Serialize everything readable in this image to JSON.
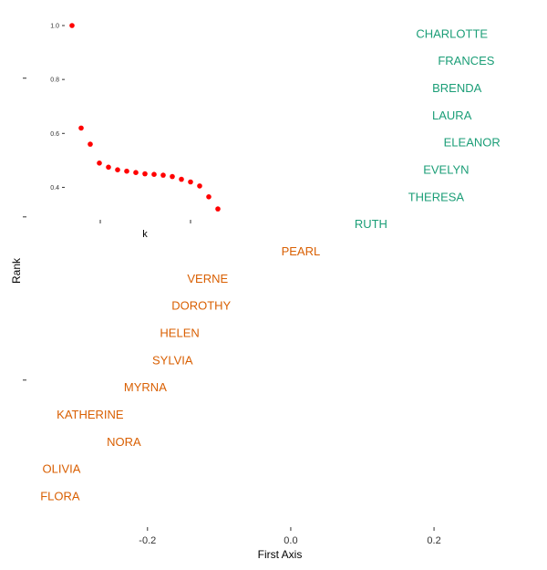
{
  "chart_data": [
    {
      "type": "scatter",
      "title": "",
      "xlabel": "First Axis",
      "ylabel": "Rank",
      "x_ticks": [
        "-0.2",
        "0.0",
        "0.2"
      ],
      "xlim": [
        -0.355,
        0.345
      ],
      "colors": {
        "group_1": "#1b9e77",
        "group_2": "#d95f02"
      },
      "points": [
        {
          "label": "CHARLOTTE",
          "x": 0.225,
          "y": 18,
          "group": "group_1"
        },
        {
          "label": "FRANCES",
          "x": 0.245,
          "y": 17,
          "group": "group_1"
        },
        {
          "label": "BRENDA",
          "x": 0.232,
          "y": 16,
          "group": "group_1"
        },
        {
          "label": "LAURA",
          "x": 0.225,
          "y": 15,
          "group": "group_1"
        },
        {
          "label": "ELEANOR",
          "x": 0.253,
          "y": 14,
          "group": "group_1"
        },
        {
          "label": "EVELYN",
          "x": 0.217,
          "y": 13,
          "group": "group_1"
        },
        {
          "label": "THERESA",
          "x": 0.203,
          "y": 12,
          "group": "group_1"
        },
        {
          "label": "RUTH",
          "x": 0.112,
          "y": 11,
          "group": "group_1"
        },
        {
          "label": "PEARL",
          "x": 0.014,
          "y": 10,
          "group": "group_2"
        },
        {
          "label": "VERNE",
          "x": -0.116,
          "y": 9,
          "group": "group_2"
        },
        {
          "label": "DOROTHY",
          "x": -0.125,
          "y": 8,
          "group": "group_2"
        },
        {
          "label": "HELEN",
          "x": -0.155,
          "y": 7,
          "group": "group_2"
        },
        {
          "label": "SYLVIA",
          "x": -0.165,
          "y": 6,
          "group": "group_2"
        },
        {
          "label": "MYRNA",
          "x": -0.203,
          "y": 5,
          "group": "group_2"
        },
        {
          "label": "KATHERINE",
          "x": -0.28,
          "y": 4,
          "group": "group_2"
        },
        {
          "label": "NORA",
          "x": -0.233,
          "y": 3,
          "group": "group_2"
        },
        {
          "label": "OLIVIA",
          "x": -0.32,
          "y": 2,
          "group": "group_2"
        },
        {
          "label": "FLORA",
          "x": -0.322,
          "y": 1,
          "group": "group_2"
        }
      ]
    },
    {
      "type": "scatter",
      "title": "",
      "xlabel": "k",
      "ylabel": "",
      "y_ticks": [
        "1.0",
        "0.8",
        "0.6",
        "0.4"
      ],
      "ylim": [
        0.31,
        1.02
      ],
      "color": "#ff0000",
      "x": [
        1,
        2,
        3,
        4,
        5,
        6,
        7,
        8,
        9,
        10,
        11,
        12,
        13,
        14,
        15,
        16,
        17
      ],
      "y": [
        1.0,
        0.62,
        0.56,
        0.49,
        0.475,
        0.465,
        0.46,
        0.455,
        0.45,
        0.448,
        0.445,
        0.44,
        0.43,
        0.42,
        0.405,
        0.365,
        0.32
      ]
    }
  ]
}
